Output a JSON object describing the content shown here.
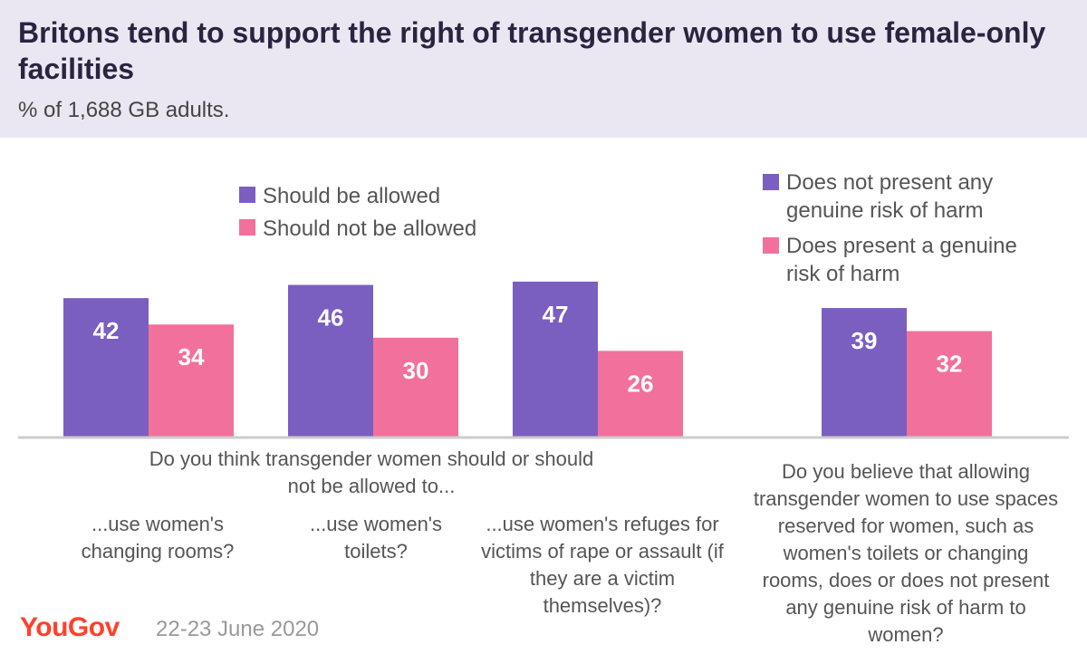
{
  "header": {
    "title": "Britons tend to support the right of transgender women to use female-only facilities",
    "subtitle": "% of 1,688 GB adults."
  },
  "colors": {
    "purple": "#7a5fc0",
    "pink": "#f2709c",
    "header_bg": "#ebe7f2"
  },
  "chart_data": [
    {
      "type": "bar",
      "legend": [
        "Should be allowed",
        "Should not be allowed"
      ],
      "legend_position": "top-center",
      "question": "Do you think transgender women should or should not be allowed to...",
      "categories": [
        "...use women's changing rooms?",
        "...use women's toilets?",
        "...use women's refuges for victims of rape or assault (if they are a victim themselves)?"
      ],
      "series": [
        {
          "name": "Should be allowed",
          "values": [
            42,
            46,
            47
          ]
        },
        {
          "name": "Should not be allowed",
          "values": [
            34,
            30,
            26
          ]
        }
      ]
    },
    {
      "type": "bar",
      "legend": [
        "Does not present any genuine risk of harm",
        "Does present a genuine risk of harm"
      ],
      "legend_position": "top-right",
      "question": "Do you believe that allowing transgender women to use spaces reserved for women, such as women's toilets or changing rooms, does or does not present any genuine risk of harm to women?",
      "categories": [
        ""
      ],
      "series": [
        {
          "name": "Does not present any genuine risk of harm",
          "values": [
            39
          ]
        },
        {
          "name": "Does present a genuine risk of harm",
          "values": [
            32
          ]
        }
      ]
    }
  ],
  "labels": {
    "legend1": [
      "Should be allowed",
      "Should not be allowed"
    ],
    "legend2_a": [
      "Does not present any",
      "genuine risk of harm"
    ],
    "legend2_b": [
      "Does present a genuine",
      "risk of harm"
    ],
    "question1": "Do you think transgender women should or should not be allowed to...",
    "question2": "Do you believe that allowing transgender women to use spaces reserved for women, such as women's toilets or changing rooms, does or does not present any genuine risk of harm to women?",
    "cat1": "...use women's changing rooms?",
    "cat2": "...use women's toilets?",
    "cat3": "...use women's refuges for victims of rape or assault (if they are a victim themselves)?"
  },
  "footer": {
    "brand": "YouGov",
    "date": "22-23 June 2020"
  }
}
